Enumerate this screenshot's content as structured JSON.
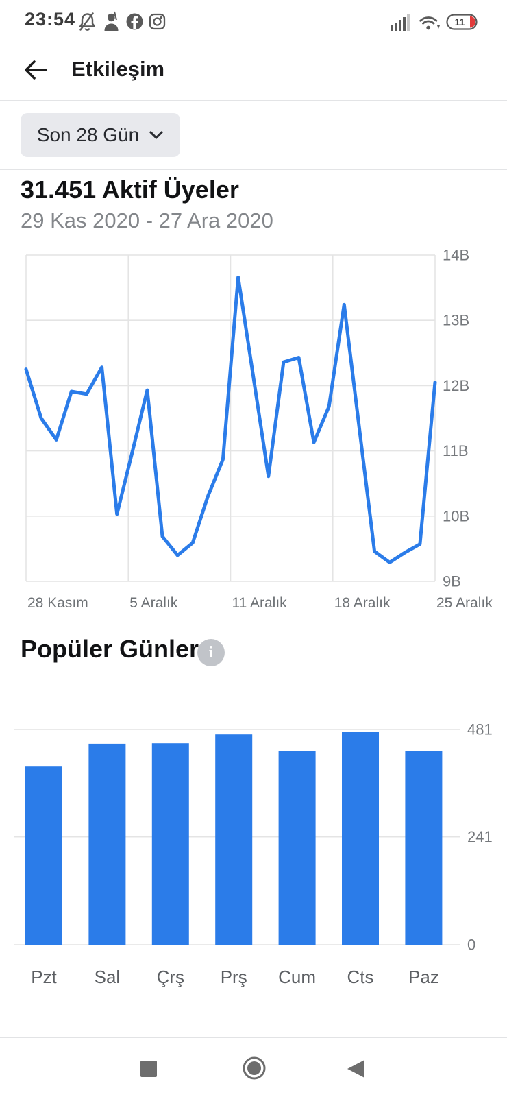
{
  "colors": {
    "accent_blue": "#2b7ce9",
    "battery_red": "#e23b3b",
    "grid": "#e4e4e4",
    "axis_text": "#75787c",
    "icon_gray": "#5a5a5a",
    "nav_gray": "#6d6d6d"
  },
  "status_bar": {
    "time": "23:54",
    "battery": {
      "level": "11"
    },
    "left_icons": [
      "notifications-muted",
      "game-soldier",
      "facebook",
      "instagram"
    ],
    "right_icons": [
      "signal",
      "wifi",
      "battery"
    ]
  },
  "header": {
    "title": "Etkileşim"
  },
  "filter": {
    "label": "Son 28 Gün"
  },
  "active_members": {
    "title": "31.451 Aktif Üyeler",
    "date_range": "29 Kas 2020 - 27 Ara 2020"
  },
  "popular_days": {
    "title": "Popüler Günler",
    "info_glyph": "i"
  },
  "chart_data": [
    {
      "name": "active_members_daily",
      "type": "line",
      "title": "31.451 Aktif Üyeler",
      "xlabel": "",
      "ylabel": "",
      "unit": "billions",
      "x_tick_labels": [
        "28 Kasım",
        "5 Aralık",
        "11 Aralık",
        "18 Aralık",
        "25 Aralık"
      ],
      "values_billions": [
        12.25,
        11.5,
        11.17,
        11.91,
        11.87,
        12.28,
        10.03,
        10.97,
        11.93,
        9.69,
        9.4,
        9.59,
        10.3,
        10.87,
        13.66,
        12.14,
        10.61,
        12.36,
        12.43,
        11.13,
        11.68,
        13.24,
        11.35,
        9.46,
        9.29,
        9.44,
        9.57,
        12.05
      ],
      "ylim": [
        9,
        14
      ],
      "yticks": [
        {
          "value": 9,
          "label": "9B"
        },
        {
          "value": 10,
          "label": "10B"
        },
        {
          "value": 11,
          "label": "11B"
        },
        {
          "value": 12,
          "label": "12B"
        },
        {
          "value": 13,
          "label": "13B"
        },
        {
          "value": 14,
          "label": "14B"
        }
      ],
      "grid": true,
      "legend": "none",
      "color": "#2b7ce9"
    },
    {
      "name": "popular_days",
      "type": "bar",
      "title": "Popüler Günler",
      "categories": [
        "Pzt",
        "Sal",
        "Çrş",
        "Prş",
        "Cum",
        "Cts",
        "Paz"
      ],
      "values": [
        398,
        449,
        450,
        470,
        432,
        476,
        433
      ],
      "ylim": [
        0,
        481
      ],
      "yticks": [
        {
          "value": 0,
          "label": "0"
        },
        {
          "value": 241,
          "label": "241"
        },
        {
          "value": 481,
          "label": "481"
        }
      ],
      "grid": true,
      "legend": "none",
      "color": "#2b7ce9"
    }
  ],
  "nav": {
    "buttons": [
      "recents",
      "home",
      "back"
    ]
  }
}
